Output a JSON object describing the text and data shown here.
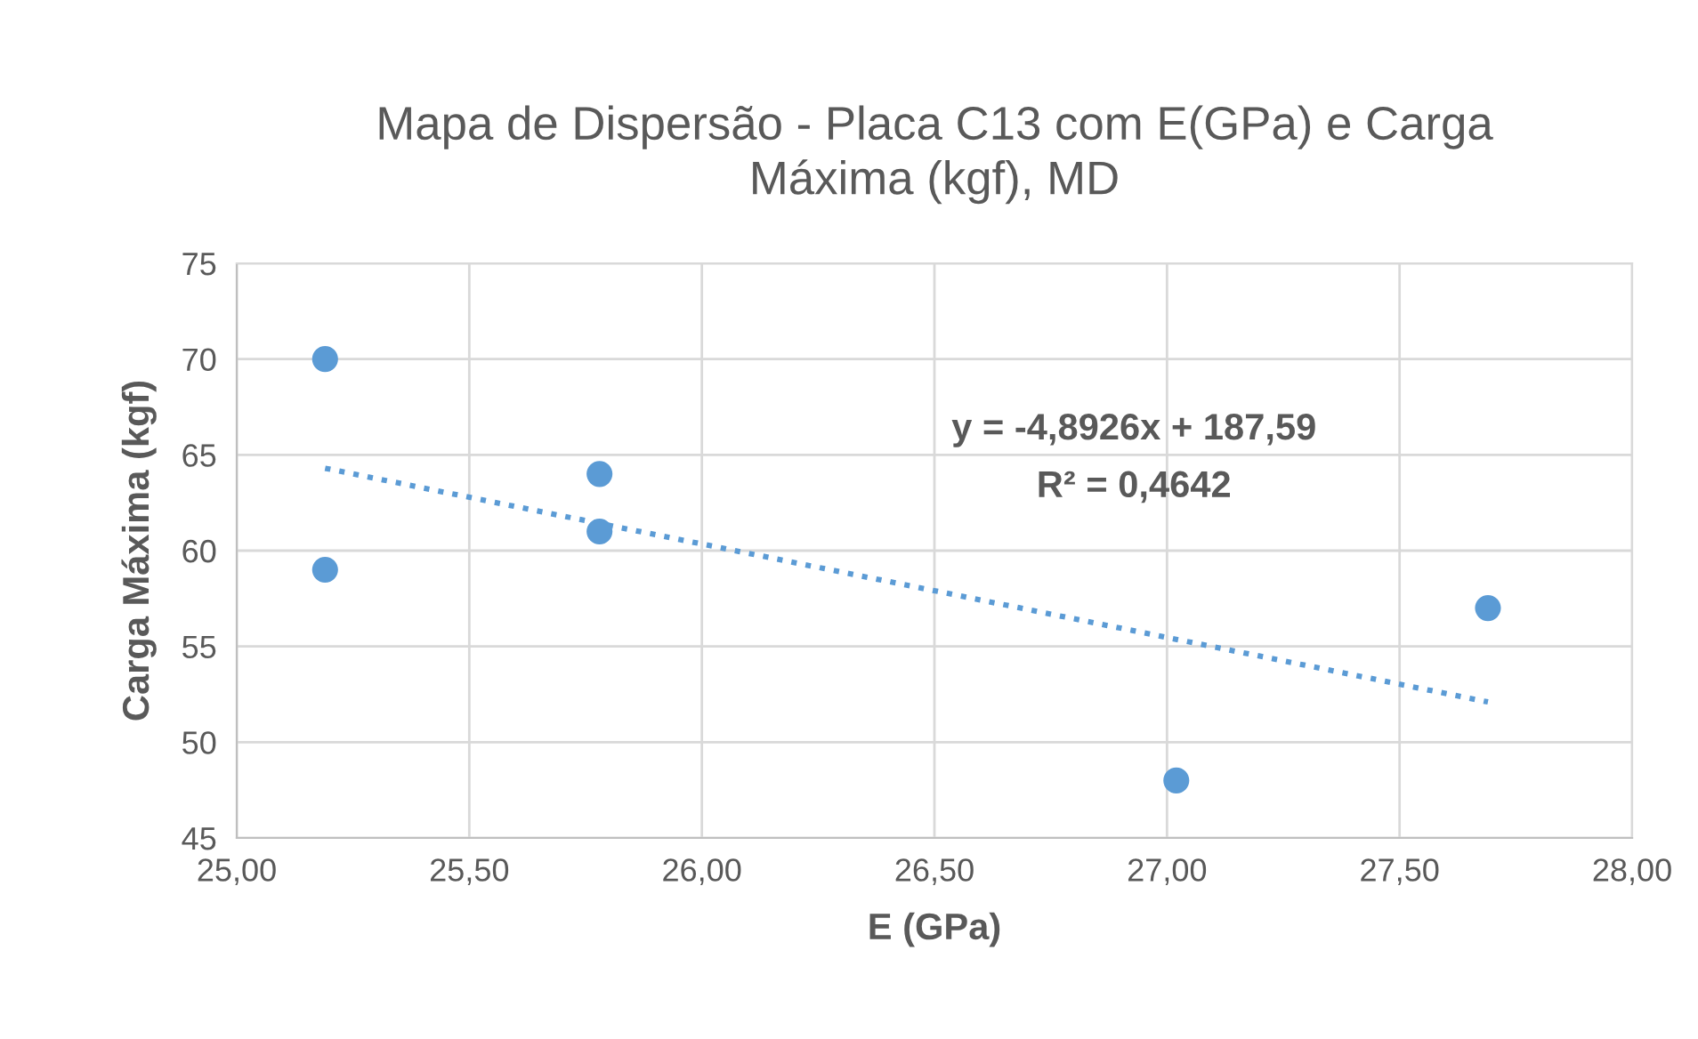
{
  "chart_data": {
    "type": "scatter",
    "title": "Mapa de Dispersão - Placa C13 com E(GPa) e Carga\nMáxima (kgf), MD",
    "xlabel": "E (GPa)",
    "ylabel": "Carga Máxima (kgf)",
    "series": [
      {
        "color": "#5b9bd5",
        "marker": "circle",
        "x": [
          25.19,
          25.19,
          25.78,
          25.78,
          27.02,
          27.69
        ],
        "values": [
          70,
          59,
          64,
          61,
          48,
          57
        ]
      },
      {
        "type": "line",
        "color": "#5b9bd5",
        "line_style": "dotted",
        "marker": "none",
        "x": [
          25.19,
          27.69
        ],
        "values": [
          64.3,
          52.1
        ]
      }
    ],
    "annotations": [
      "y = -4,8926x + 187,59",
      "R² = 0,4642"
    ],
    "xlim": [
      25,
      28
    ],
    "xticks": [
      {
        "value": 25,
        "label": "25,00"
      },
      {
        "value": 25.5,
        "label": "25,50"
      },
      {
        "value": 26,
        "label": "26,00"
      },
      {
        "value": 26.5,
        "label": "26,50"
      },
      {
        "value": 27,
        "label": "27,00"
      },
      {
        "value": 27.5,
        "label": "27,50"
      },
      {
        "value": 28,
        "label": "28,00"
      }
    ],
    "ylim": [
      45,
      75
    ],
    "yticks": [
      45,
      50,
      55,
      60,
      65,
      70,
      75
    ],
    "grid": true
  }
}
